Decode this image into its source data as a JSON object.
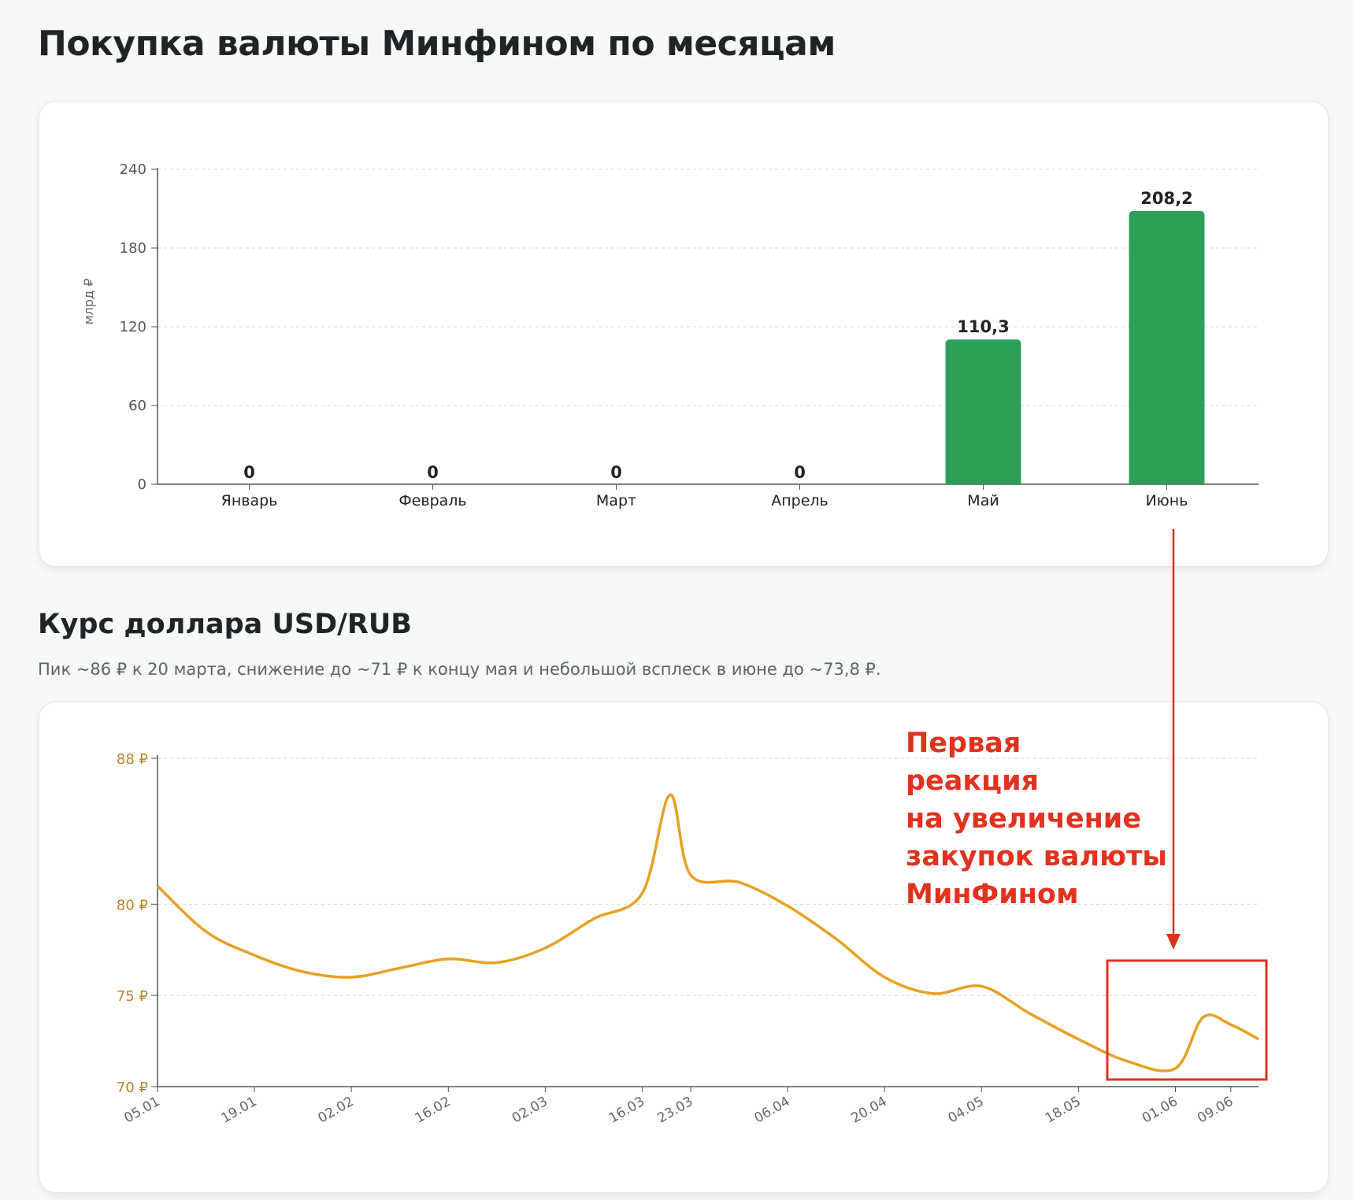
{
  "page": {
    "title": "Покупка валюты Минфином по месяцам",
    "section2_title": "Курс доллара USD/RUB",
    "section2_subtitle": "Пик ~86 ₽ к 20 марта, снижение до ~71 ₽ к концу мая и небольшой всплеск в июне до ~73,8 ₽.",
    "annotation_lines": [
      "Первая",
      "реакция",
      "на увеличение",
      "закупок валюты",
      "МинФином"
    ]
  },
  "chart_data": [
    {
      "type": "bar",
      "title": "Покупка валюты Минфином по месяцам",
      "ylabel": "млрд ₽",
      "categories": [
        "Январь",
        "Февраль",
        "Март",
        "Апрель",
        "Май",
        "Июнь"
      ],
      "values": [
        0,
        0,
        0,
        0,
        110.3,
        208.2
      ],
      "value_labels": [
        "0",
        "0",
        "0",
        "0",
        "110,3",
        "208,2"
      ],
      "ylim": [
        0,
        240
      ],
      "yticks": [
        0,
        60,
        120,
        180,
        240
      ],
      "ytick_labels": [
        "0",
        "60",
        "120",
        "180",
        "240"
      ],
      "grid": true,
      "color": "#2ca058"
    },
    {
      "type": "line",
      "title": "Курс доллара USD/RUB",
      "x": [
        "05.01",
        "12.01",
        "19.01",
        "26.01",
        "02.02",
        "09.02",
        "16.02",
        "23.02",
        "02.03",
        "09.03",
        "16.03",
        "20.03",
        "23.03",
        "30.03",
        "06.04",
        "13.04",
        "20.04",
        "27.04",
        "04.05",
        "11.05",
        "18.05",
        "25.05",
        "01.06",
        "05.06",
        "09.06",
        "13.06"
      ],
      "y": [
        81.0,
        78.5,
        77.2,
        76.3,
        76.0,
        76.5,
        77.0,
        76.8,
        77.6,
        79.2,
        80.6,
        86.0,
        81.6,
        81.2,
        79.9,
        78.1,
        76.0,
        75.1,
        75.5,
        74.0,
        72.6,
        71.4,
        71.0,
        73.8,
        73.4,
        72.6
      ],
      "xtick_labels": [
        "05.01",
        "19.01",
        "02.02",
        "16.02",
        "02.03",
        "16.03",
        "23.03",
        "06.04",
        "20.04",
        "04.05",
        "18.05",
        "01.06",
        "09.06"
      ],
      "ylim": [
        70,
        88
      ],
      "yticks": [
        70,
        75,
        80,
        88
      ],
      "ytick_labels": [
        "70 ₽",
        "75 ₽",
        "80 ₽",
        "88 ₽"
      ],
      "grid": true,
      "color": "#e8a022",
      "highlight_color": "#e0321e"
    }
  ]
}
